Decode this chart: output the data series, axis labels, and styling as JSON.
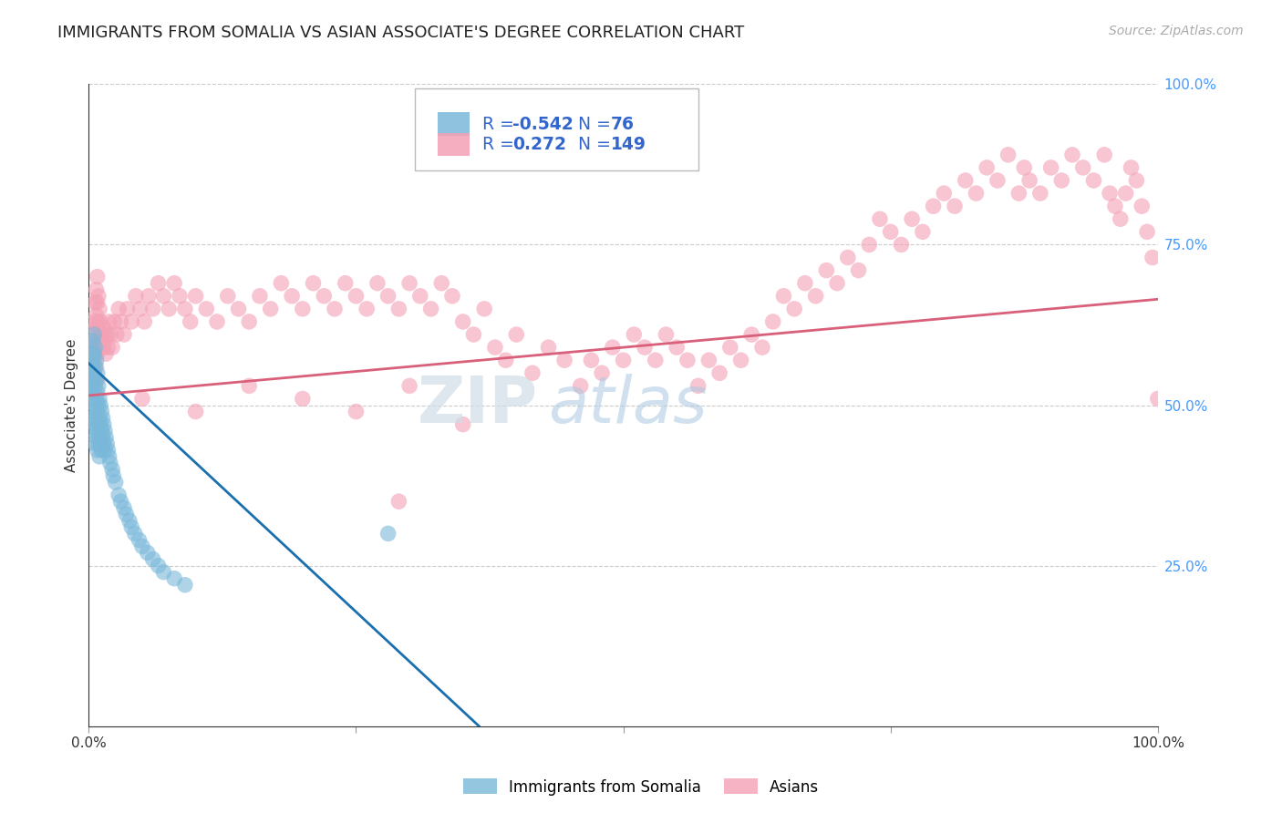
{
  "title": "IMMIGRANTS FROM SOMALIA VS ASIAN ASSOCIATE'S DEGREE CORRELATION CHART",
  "source": "Source: ZipAtlas.com",
  "ylabel": "Associate's Degree",
  "color_blue": "#7ab8d9",
  "color_pink": "#f4a0b5",
  "line_blue": "#1a6faf",
  "line_pink": "#d9607a",
  "watermark_top": "ZIP",
  "watermark_bot": "atlas",
  "title_fontsize": 13,
  "source_fontsize": 10,
  "ylabel_fontsize": 11,
  "right_tick_color": "#4499ff",
  "ytick_right_labels": [
    "100.0%",
    "75.0%",
    "50.0%",
    "25.0%"
  ],
  "ytick_right_vals": [
    1.0,
    0.75,
    0.5,
    0.25
  ],
  "xlim": [
    0.0,
    1.0
  ],
  "ylim": [
    0.0,
    1.0
  ],
  "blue_trend_x": [
    0.0,
    0.365
  ],
  "blue_trend_y": [
    0.565,
    0.0
  ],
  "pink_trend_x": [
    0.0,
    1.0
  ],
  "pink_trend_y": [
    0.515,
    0.665
  ],
  "blue_scatter": [
    [
      0.002,
      0.56
    ],
    [
      0.002,
      0.53
    ],
    [
      0.003,
      0.58
    ],
    [
      0.003,
      0.55
    ],
    [
      0.003,
      0.52
    ],
    [
      0.004,
      0.6
    ],
    [
      0.004,
      0.57
    ],
    [
      0.004,
      0.54
    ],
    [
      0.004,
      0.51
    ],
    [
      0.004,
      0.48
    ],
    [
      0.005,
      0.61
    ],
    [
      0.005,
      0.58
    ],
    [
      0.005,
      0.55
    ],
    [
      0.005,
      0.52
    ],
    [
      0.005,
      0.49
    ],
    [
      0.005,
      0.46
    ],
    [
      0.006,
      0.59
    ],
    [
      0.006,
      0.56
    ],
    [
      0.006,
      0.53
    ],
    [
      0.006,
      0.5
    ],
    [
      0.006,
      0.47
    ],
    [
      0.006,
      0.44
    ],
    [
      0.007,
      0.57
    ],
    [
      0.007,
      0.54
    ],
    [
      0.007,
      0.51
    ],
    [
      0.007,
      0.48
    ],
    [
      0.007,
      0.45
    ],
    [
      0.008,
      0.55
    ],
    [
      0.008,
      0.52
    ],
    [
      0.008,
      0.49
    ],
    [
      0.008,
      0.46
    ],
    [
      0.008,
      0.43
    ],
    [
      0.009,
      0.53
    ],
    [
      0.009,
      0.5
    ],
    [
      0.009,
      0.47
    ],
    [
      0.009,
      0.44
    ],
    [
      0.01,
      0.51
    ],
    [
      0.01,
      0.48
    ],
    [
      0.01,
      0.45
    ],
    [
      0.01,
      0.42
    ],
    [
      0.011,
      0.5
    ],
    [
      0.011,
      0.47
    ],
    [
      0.011,
      0.44
    ],
    [
      0.012,
      0.49
    ],
    [
      0.012,
      0.46
    ],
    [
      0.012,
      0.43
    ],
    [
      0.013,
      0.48
    ],
    [
      0.013,
      0.45
    ],
    [
      0.014,
      0.47
    ],
    [
      0.014,
      0.44
    ],
    [
      0.015,
      0.46
    ],
    [
      0.015,
      0.43
    ],
    [
      0.016,
      0.45
    ],
    [
      0.017,
      0.44
    ],
    [
      0.018,
      0.43
    ],
    [
      0.019,
      0.42
    ],
    [
      0.02,
      0.41
    ],
    [
      0.022,
      0.4
    ],
    [
      0.023,
      0.39
    ],
    [
      0.025,
      0.38
    ],
    [
      0.028,
      0.36
    ],
    [
      0.03,
      0.35
    ],
    [
      0.033,
      0.34
    ],
    [
      0.035,
      0.33
    ],
    [
      0.038,
      0.32
    ],
    [
      0.04,
      0.31
    ],
    [
      0.043,
      0.3
    ],
    [
      0.047,
      0.29
    ],
    [
      0.05,
      0.28
    ],
    [
      0.055,
      0.27
    ],
    [
      0.06,
      0.26
    ],
    [
      0.065,
      0.25
    ],
    [
      0.07,
      0.24
    ],
    [
      0.08,
      0.23
    ],
    [
      0.09,
      0.22
    ],
    [
      0.28,
      0.3
    ]
  ],
  "pink_scatter": [
    [
      0.003,
      0.57
    ],
    [
      0.004,
      0.6
    ],
    [
      0.004,
      0.56
    ],
    [
      0.005,
      0.63
    ],
    [
      0.005,
      0.59
    ],
    [
      0.005,
      0.55
    ],
    [
      0.006,
      0.66
    ],
    [
      0.006,
      0.62
    ],
    [
      0.006,
      0.58
    ],
    [
      0.006,
      0.54
    ],
    [
      0.007,
      0.68
    ],
    [
      0.007,
      0.64
    ],
    [
      0.007,
      0.6
    ],
    [
      0.007,
      0.56
    ],
    [
      0.008,
      0.7
    ],
    [
      0.008,
      0.66
    ],
    [
      0.008,
      0.62
    ],
    [
      0.008,
      0.58
    ],
    [
      0.008,
      0.54
    ],
    [
      0.009,
      0.67
    ],
    [
      0.009,
      0.63
    ],
    [
      0.009,
      0.59
    ],
    [
      0.01,
      0.65
    ],
    [
      0.01,
      0.61
    ],
    [
      0.011,
      0.63
    ],
    [
      0.012,
      0.61
    ],
    [
      0.013,
      0.59
    ],
    [
      0.014,
      0.62
    ],
    [
      0.015,
      0.6
    ],
    [
      0.016,
      0.58
    ],
    [
      0.017,
      0.61
    ],
    [
      0.018,
      0.59
    ],
    [
      0.019,
      0.63
    ],
    [
      0.02,
      0.61
    ],
    [
      0.022,
      0.59
    ],
    [
      0.024,
      0.63
    ],
    [
      0.026,
      0.61
    ],
    [
      0.028,
      0.65
    ],
    [
      0.03,
      0.63
    ],
    [
      0.033,
      0.61
    ],
    [
      0.036,
      0.65
    ],
    [
      0.04,
      0.63
    ],
    [
      0.044,
      0.67
    ],
    [
      0.048,
      0.65
    ],
    [
      0.052,
      0.63
    ],
    [
      0.056,
      0.67
    ],
    [
      0.06,
      0.65
    ],
    [
      0.065,
      0.69
    ],
    [
      0.07,
      0.67
    ],
    [
      0.075,
      0.65
    ],
    [
      0.08,
      0.69
    ],
    [
      0.085,
      0.67
    ],
    [
      0.09,
      0.65
    ],
    [
      0.095,
      0.63
    ],
    [
      0.1,
      0.67
    ],
    [
      0.11,
      0.65
    ],
    [
      0.12,
      0.63
    ],
    [
      0.13,
      0.67
    ],
    [
      0.14,
      0.65
    ],
    [
      0.15,
      0.63
    ],
    [
      0.16,
      0.67
    ],
    [
      0.17,
      0.65
    ],
    [
      0.18,
      0.69
    ],
    [
      0.19,
      0.67
    ],
    [
      0.2,
      0.65
    ],
    [
      0.21,
      0.69
    ],
    [
      0.22,
      0.67
    ],
    [
      0.23,
      0.65
    ],
    [
      0.24,
      0.69
    ],
    [
      0.25,
      0.67
    ],
    [
      0.26,
      0.65
    ],
    [
      0.27,
      0.69
    ],
    [
      0.28,
      0.67
    ],
    [
      0.29,
      0.65
    ],
    [
      0.3,
      0.69
    ],
    [
      0.31,
      0.67
    ],
    [
      0.32,
      0.65
    ],
    [
      0.33,
      0.69
    ],
    [
      0.34,
      0.67
    ],
    [
      0.35,
      0.63
    ],
    [
      0.36,
      0.61
    ],
    [
      0.37,
      0.65
    ],
    [
      0.38,
      0.59
    ],
    [
      0.39,
      0.57
    ],
    [
      0.4,
      0.61
    ],
    [
      0.415,
      0.55
    ],
    [
      0.43,
      0.59
    ],
    [
      0.445,
      0.57
    ],
    [
      0.46,
      0.53
    ],
    [
      0.47,
      0.57
    ],
    [
      0.48,
      0.55
    ],
    [
      0.49,
      0.59
    ],
    [
      0.5,
      0.57
    ],
    [
      0.51,
      0.61
    ],
    [
      0.52,
      0.59
    ],
    [
      0.53,
      0.57
    ],
    [
      0.54,
      0.61
    ],
    [
      0.55,
      0.59
    ],
    [
      0.56,
      0.57
    ],
    [
      0.57,
      0.53
    ],
    [
      0.58,
      0.57
    ],
    [
      0.59,
      0.55
    ],
    [
      0.6,
      0.59
    ],
    [
      0.61,
      0.57
    ],
    [
      0.62,
      0.61
    ],
    [
      0.63,
      0.59
    ],
    [
      0.64,
      0.63
    ],
    [
      0.65,
      0.67
    ],
    [
      0.66,
      0.65
    ],
    [
      0.67,
      0.69
    ],
    [
      0.68,
      0.67
    ],
    [
      0.69,
      0.71
    ],
    [
      0.7,
      0.69
    ],
    [
      0.71,
      0.73
    ],
    [
      0.72,
      0.71
    ],
    [
      0.73,
      0.75
    ],
    [
      0.74,
      0.79
    ],
    [
      0.75,
      0.77
    ],
    [
      0.76,
      0.75
    ],
    [
      0.77,
      0.79
    ],
    [
      0.78,
      0.77
    ],
    [
      0.79,
      0.81
    ],
    [
      0.8,
      0.83
    ],
    [
      0.81,
      0.81
    ],
    [
      0.82,
      0.85
    ],
    [
      0.83,
      0.83
    ],
    [
      0.84,
      0.87
    ],
    [
      0.85,
      0.85
    ],
    [
      0.86,
      0.89
    ],
    [
      0.87,
      0.83
    ],
    [
      0.875,
      0.87
    ],
    [
      0.88,
      0.85
    ],
    [
      0.89,
      0.83
    ],
    [
      0.9,
      0.87
    ],
    [
      0.91,
      0.85
    ],
    [
      0.92,
      0.89
    ],
    [
      0.93,
      0.87
    ],
    [
      0.94,
      0.85
    ],
    [
      0.95,
      0.89
    ],
    [
      0.955,
      0.83
    ],
    [
      0.96,
      0.81
    ],
    [
      0.965,
      0.79
    ],
    [
      0.97,
      0.83
    ],
    [
      0.975,
      0.87
    ],
    [
      0.98,
      0.85
    ],
    [
      0.985,
      0.81
    ],
    [
      0.99,
      0.77
    ],
    [
      0.995,
      0.73
    ],
    [
      1.0,
      0.51
    ],
    [
      0.05,
      0.51
    ],
    [
      0.1,
      0.49
    ],
    [
      0.15,
      0.53
    ],
    [
      0.2,
      0.51
    ],
    [
      0.25,
      0.49
    ],
    [
      0.3,
      0.53
    ],
    [
      0.35,
      0.47
    ],
    [
      0.29,
      0.35
    ]
  ]
}
